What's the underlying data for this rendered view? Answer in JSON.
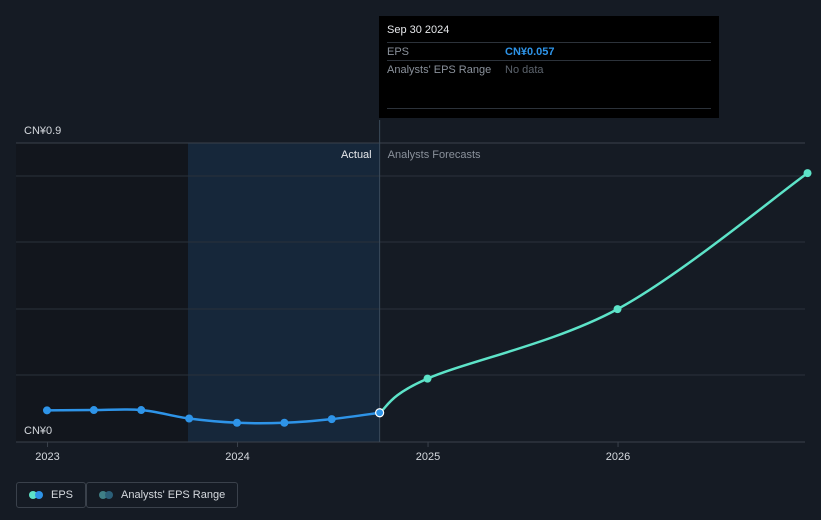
{
  "chart_data": {
    "type": "line",
    "ylabel_top": "CN¥0.9",
    "ylabel_bottom": "CN¥0",
    "ylim": [
      0,
      0.9
    ],
    "x_ticks": [
      "2023",
      "2024",
      "2025",
      "2026"
    ],
    "divider_labels": {
      "actual": "Actual",
      "forecast": "Analysts Forecasts"
    },
    "series": [
      {
        "name": "EPS",
        "kind": "actual",
        "color": "#2e94e8",
        "points": [
          [
            "2022-12-31",
            0.065
          ],
          [
            "2023-03-31",
            0.066
          ],
          [
            "2023-06-30",
            0.066
          ],
          [
            "2023-09-30",
            0.038
          ],
          [
            "2023-12-31",
            0.024
          ],
          [
            "2024-03-31",
            0.024
          ],
          [
            "2024-06-30",
            0.036
          ],
          [
            "2024-09-30",
            0.057
          ]
        ]
      },
      {
        "name": "EPS forecast",
        "kind": "forecast",
        "color": "#5de3c8",
        "points": [
          [
            "2024-09-30",
            0.057
          ],
          [
            "2024-12-31",
            0.17
          ],
          [
            "2025-12-31",
            0.4
          ],
          [
            "2026-12-31",
            0.85
          ]
        ]
      }
    ]
  },
  "tooltip": {
    "date": "Sep 30 2024",
    "rows": [
      {
        "label": "EPS",
        "value": "CN¥0.057"
      },
      {
        "label": "Analysts' EPS Range",
        "value": "No data"
      }
    ]
  },
  "legend": [
    {
      "label": "EPS",
      "colors": [
        "#5de3c8",
        "#2e94e8"
      ]
    },
    {
      "label": "Analysts' EPS Range",
      "colors": [
        "#3f7f86",
        "#2b5f78"
      ]
    }
  ],
  "colors": {
    "background": "#151b24",
    "past_shade": "#12161d",
    "highlight_band": "#16273a",
    "grid": "#2a313b",
    "text": "#d5d9de",
    "muted": "#8a919b"
  }
}
